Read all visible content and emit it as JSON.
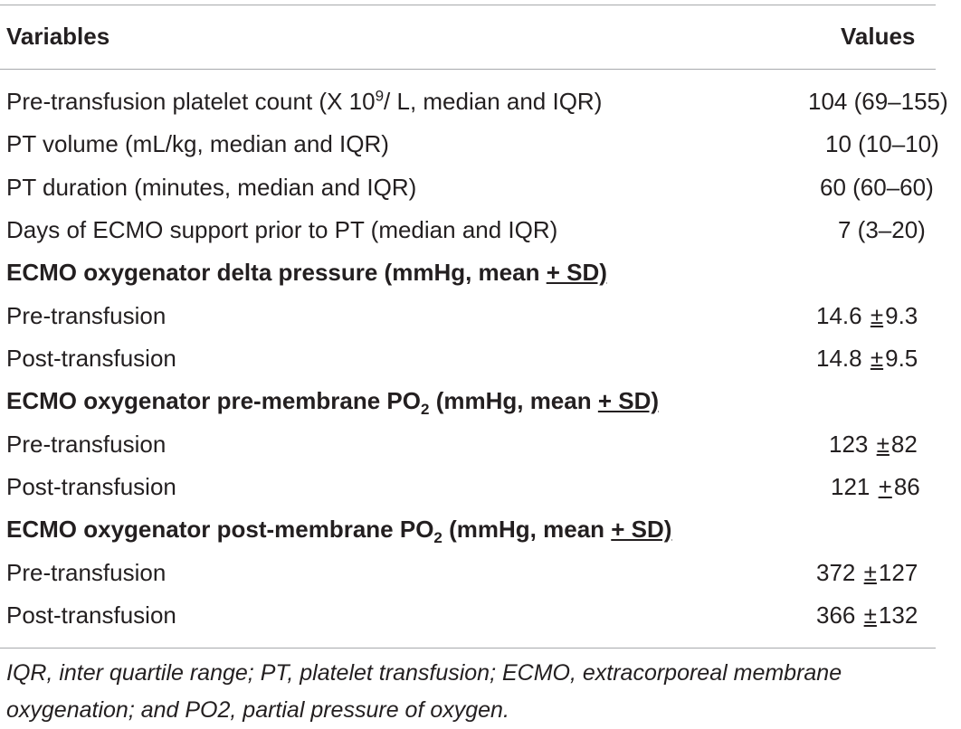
{
  "header": {
    "variables": "Variables",
    "values": "Values"
  },
  "rows": [
    {
      "label_pre": "Pre-transfusion platelet count (X 10",
      "label_sup": "9",
      "label_post": "/ L, median and IQR)",
      "value": "104 (69–155)"
    },
    {
      "label": "PT volume (mL/kg, median and IQR)",
      "value": "10 (10–10)"
    },
    {
      "label": "PT duration (minutes, median and IQR)",
      "value": "60 (60–60)"
    },
    {
      "label": "Days of ECMO support prior to PT (median and IQR)",
      "value": "7 (3–20)"
    },
    {
      "label_pre": "ECMO oxygenator delta pressure (mmHg, mean ",
      "label_ul": "+ SD)"
    },
    {
      "label": "Pre-transfusion",
      "value_a": "14.6",
      "value_pm": "±",
      "value_b": "9.3"
    },
    {
      "label": "Post-transfusion",
      "value_a": "14.8",
      "value_pm": "±",
      "value_b": "9.5"
    },
    {
      "label_pre": "ECMO oxygenator pre-membrane PO",
      "label_sub": "2",
      "label_mid": " (mmHg, mean ",
      "label_ul": "+ SD)"
    },
    {
      "label": "Pre-transfusion",
      "value_a": "123",
      "value_pm": "±",
      "value_b": "82"
    },
    {
      "label": "Post-transfusion",
      "value_a": "121",
      "value_pm": "+",
      "value_b": "86"
    },
    {
      "label_pre": "ECMO oxygenator post-membrane PO",
      "label_sub": "2",
      "label_mid": " (mmHg, mean ",
      "label_ul": "+ SD)"
    },
    {
      "label": "Pre-transfusion",
      "value_a": "372",
      "value_pm": "±",
      "value_b": "127"
    },
    {
      "label": "Post-transfusion",
      "value_a": "366",
      "value_pm": "±",
      "value_b": "132"
    }
  ],
  "footnote": "IQR, inter quartile range; PT, platelet transfusion; ECMO, extracorporeal membrane oxygenation; and PO2, partial pressure of oxygen."
}
